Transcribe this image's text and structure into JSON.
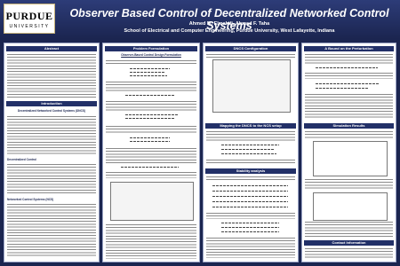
{
  "header": {
    "logo_top": "PURDUE",
    "logo_bottom": "UNIVERSITY",
    "title": "Observer Based Control of Decentralized Networked Control Systems",
    "authors": "Ahmed M. Elmahdi, Ahmad F. Taha",
    "affiliation": "School of Electrical and Computer Engineering, Purdue University, West Lafayette, Indiana"
  },
  "sections": {
    "abstract": "Abstract",
    "introduction": "Introduction",
    "problem_formulation": "Problem Formulation",
    "dncs_configuration": "DNCS Configuration",
    "mapping": "Mapping the DNCS to the NCS setup",
    "stability": "Stability analysis",
    "bound": "A Bound on the Perturbation",
    "simulation": "Simulation Results",
    "contact": "Contact Information"
  },
  "subheadings": {
    "observer_design": "Observer-Based Control Design Formulation",
    "dncs": "Decentralized Networked Control Systems (DNCS)",
    "decentralized_control": "Decentralized Control",
    "ncs": "Networked Control Systems (NCS)"
  }
}
